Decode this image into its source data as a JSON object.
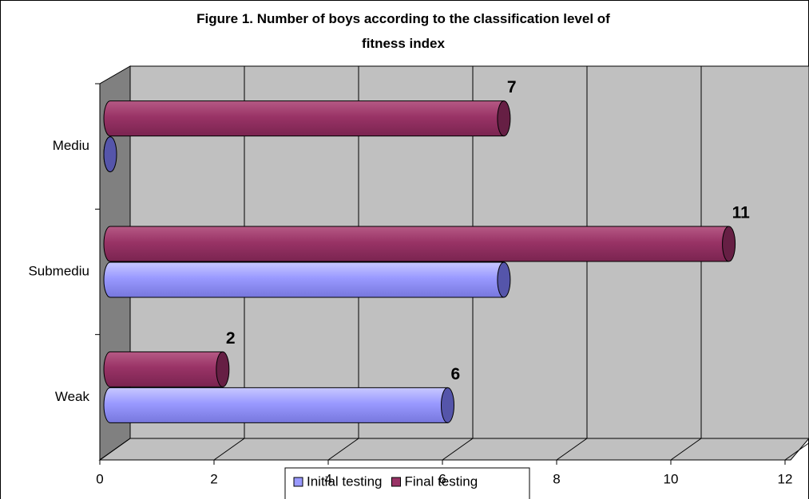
{
  "chart_data": {
    "type": "bar",
    "orientation": "horizontal",
    "title": "Figure 1. Number of boys according to the classification level of fitness index",
    "categories": [
      "Weak",
      "Submediu",
      "Mediu"
    ],
    "series": [
      {
        "name": "Initial testing",
        "color": "#9999ff",
        "values": [
          6,
          7,
          0
        ]
      },
      {
        "name": "Final testing",
        "color": "#993366",
        "values": [
          2,
          11,
          7
        ]
      }
    ],
    "xlim": [
      0,
      12
    ],
    "xticks": [
      0,
      2,
      4,
      6,
      8,
      10,
      12
    ],
    "grid": true,
    "legend": "bottom"
  }
}
